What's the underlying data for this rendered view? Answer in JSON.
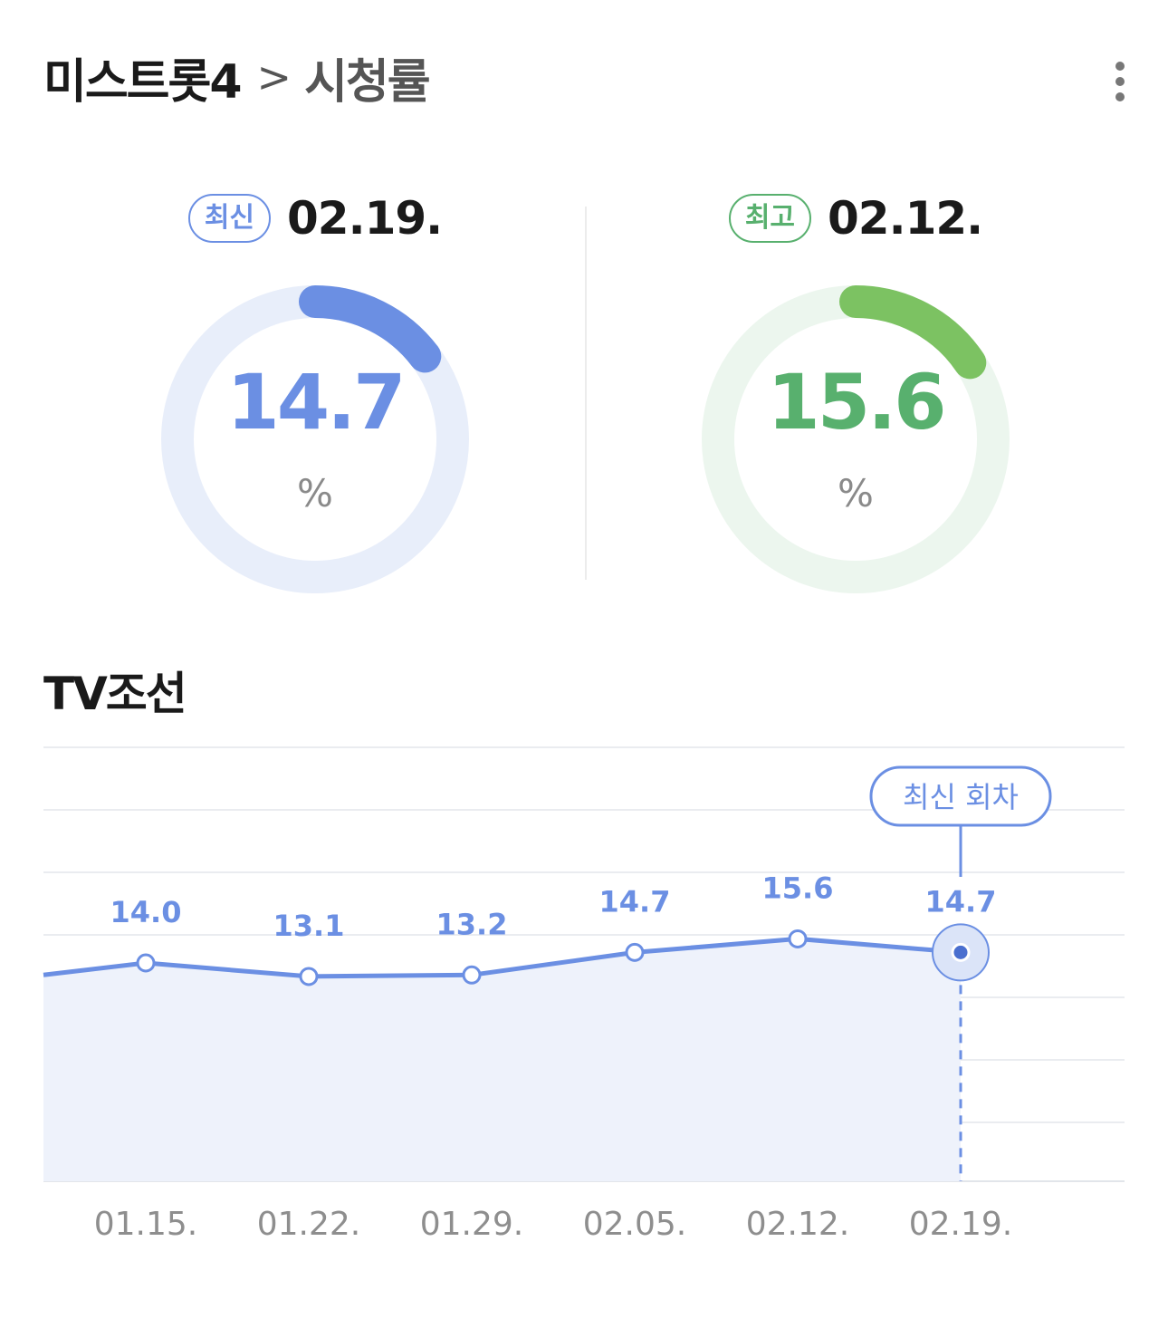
{
  "header": {
    "program": "미스트롯4",
    "separator": ">",
    "section": "시청률"
  },
  "summary": {
    "latest": {
      "badge": "최신",
      "date": "02.19.",
      "value": "14.7",
      "unit": "%",
      "color": "#6b8fe3",
      "track": "#e8eefa"
    },
    "best": {
      "badge": "최고",
      "date": "02.12.",
      "value": "15.6",
      "unit": "%",
      "color": "#7cc262",
      "track": "#ecf6ee",
      "value_color": "#58b06e"
    }
  },
  "network": "TV조선",
  "chart_data": {
    "type": "line",
    "x": [
      "01.15.",
      "01.22.",
      "01.29.",
      "02.05.",
      "02.12.",
      "02.19."
    ],
    "series": [
      {
        "values": [
          14.0,
          13.1,
          13.2,
          14.7,
          15.6,
          14.7
        ],
        "labels": [
          "14.0",
          "13.1",
          "13.2",
          "14.7",
          "15.6",
          "14.7"
        ]
      }
    ],
    "annotation": {
      "label": "최신 회차",
      "x": "02.19."
    },
    "line_color": "#6b8fe3",
    "fill_color": "#eef2fb",
    "grid": true,
    "legend": "none"
  }
}
